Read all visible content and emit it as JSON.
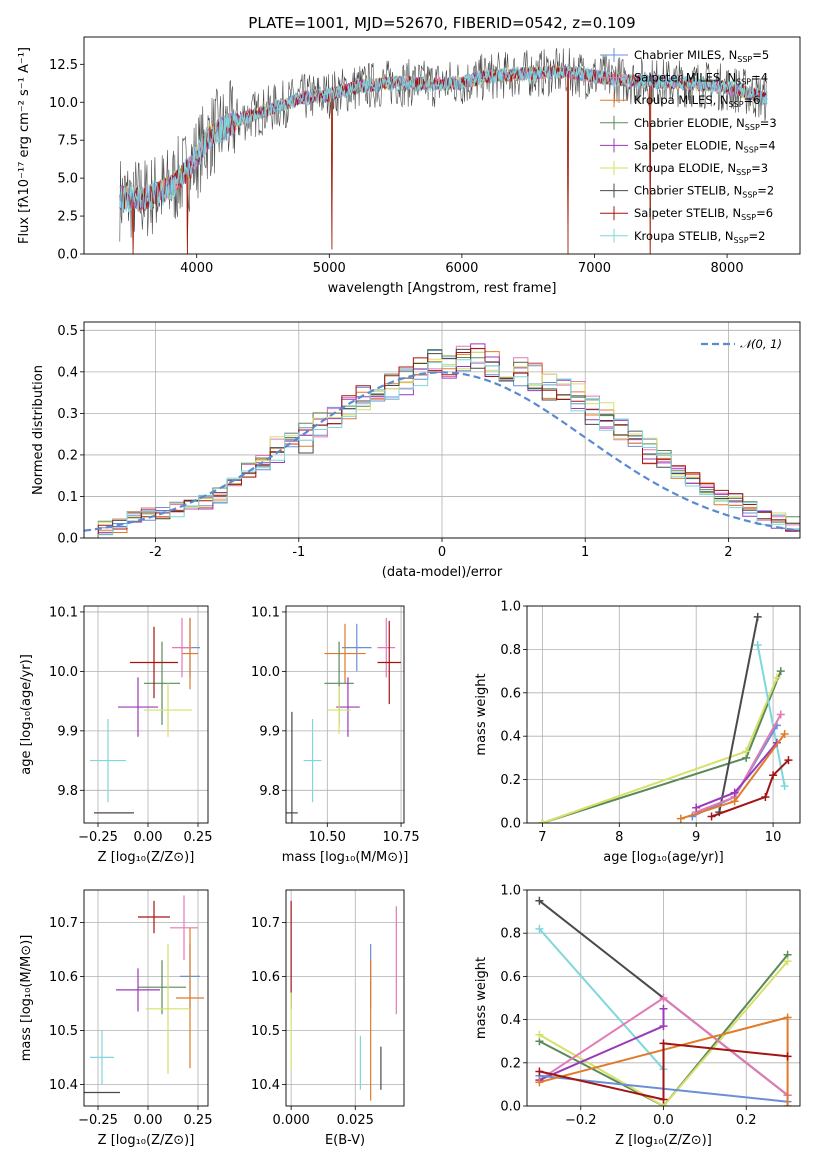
{
  "colors": [
    "#6b8fd6",
    "#e27ab8",
    "#e07b2a",
    "#5a8a5a",
    "#9a3ab8",
    "#d6e06a",
    "#4a4a4a",
    "#a31515",
    "#7fd6dc"
  ],
  "chart_data": [
    {
      "id": "spectrum",
      "type": "line",
      "title": "PLATE=1001, MJD=52670, FIBERID=0542, z=0.109",
      "xlabel": "wavelength [Angstrom, rest frame]",
      "ylabel": "Flux [fλ10⁻¹⁷ erg cm⁻² s⁻¹ A⁻¹]",
      "xlim": [
        3150,
        8550
      ],
      "ylim": [
        0,
        14.3
      ],
      "xticks": [
        4000,
        5000,
        6000,
        7000,
        8000
      ],
      "yticks": [
        0.0,
        2.5,
        5.0,
        7.5,
        10.0,
        12.5
      ],
      "continuum": [
        [
          3420,
          3.7
        ],
        [
          3600,
          3.6
        ],
        [
          3800,
          4.4
        ],
        [
          3950,
          5.7
        ],
        [
          4100,
          7.8
        ],
        [
          4300,
          8.8
        ],
        [
          4500,
          9.4
        ],
        [
          4800,
          10.3
        ],
        [
          5000,
          10.5
        ],
        [
          5200,
          11.0
        ],
        [
          5500,
          11.3
        ],
        [
          5800,
          11.2
        ],
        [
          6000,
          11.3
        ],
        [
          6200,
          11.7
        ],
        [
          6500,
          11.9
        ],
        [
          6800,
          12.0
        ],
        [
          7000,
          11.7
        ],
        [
          7300,
          11.4
        ],
        [
          7600,
          11.3
        ],
        [
          7900,
          11.1
        ],
        [
          8100,
          10.8
        ],
        [
          8300,
          10.2
        ]
      ],
      "drops": [
        [
          3520,
          0.0
        ],
        [
          3930,
          0.0
        ],
        [
          5020,
          0.3
        ],
        [
          6800,
          0.0
        ],
        [
          7420,
          0.0
        ]
      ],
      "legend": [
        {
          "label": "Chabrier MILES, N",
          "sub": "SSP",
          "suffix": "=5"
        },
        {
          "label": "Salpeter MILES, N",
          "sub": "SSP",
          "suffix": "=4"
        },
        {
          "label": "Kroupa MILES, N",
          "sub": "SSP",
          "suffix": "=6"
        },
        {
          "label": "Chabrier ELODIE, N",
          "sub": "SSP",
          "suffix": "=3"
        },
        {
          "label": "Salpeter ELODIE, N",
          "sub": "SSP",
          "suffix": "=4"
        },
        {
          "label": "Kroupa ELODIE, N",
          "sub": "SSP",
          "suffix": "=3"
        },
        {
          "label": "Chabrier STELIB, N",
          "sub": "SSP",
          "suffix": "=2"
        },
        {
          "label": "Salpeter STELIB, N",
          "sub": "SSP",
          "suffix": "=6"
        },
        {
          "label": "Kroupa STELIB, N",
          "sub": "SSP",
          "suffix": "=2"
        }
      ]
    },
    {
      "id": "histogram",
      "type": "histogram",
      "xlabel": "(data-model)/error",
      "ylabel": "Normed distribution",
      "xlim": [
        -2.5,
        2.5
      ],
      "ylim": [
        0,
        0.52
      ],
      "xticks": [
        -2,
        -1,
        0,
        1,
        2
      ],
      "yticks": [
        0.0,
        0.1,
        0.2,
        0.3,
        0.4,
        0.5
      ],
      "bin_width": 0.1,
      "legend": "𝒩(0, 1)",
      "edges_start": -2.5,
      "hist_values": [
        0.01,
        0.02,
        0.03,
        0.05,
        0.06,
        0.06,
        0.07,
        0.08,
        0.09,
        0.1,
        0.13,
        0.16,
        0.18,
        0.21,
        0.23,
        0.24,
        0.27,
        0.29,
        0.31,
        0.33,
        0.35,
        0.36,
        0.38,
        0.4,
        0.42,
        0.41,
        0.43,
        0.44,
        0.42,
        0.41,
        0.4,
        0.39,
        0.37,
        0.35,
        0.34,
        0.31,
        0.29,
        0.26,
        0.23,
        0.21,
        0.19,
        0.16,
        0.14,
        0.12,
        0.1,
        0.09,
        0.07,
        0.05,
        0.04,
        0.03
      ]
    },
    {
      "id": "age-vs-Z",
      "type": "errorbar",
      "xlabel": "Z [log₁₀(Z/Z⊙)]",
      "ylabel": "age  [log₁₀(age/yr)]",
      "xlim": [
        -0.32,
        0.3
      ],
      "ylim": [
        9.745,
        10.11
      ],
      "xticks": [
        -0.25,
        0.0,
        0.25
      ],
      "xticklabels": [
        "−0.25",
        "0.00",
        "0.25"
      ],
      "yticks": [
        9.8,
        9.9,
        10.0,
        10.1
      ],
      "points": [
        {
          "c": 0,
          "x": 0.21,
          "xe": 0.05,
          "y": 10.04,
          "ye": 0.05
        },
        {
          "c": 1,
          "x": 0.17,
          "xe": 0.05,
          "y": 10.04,
          "ye": 0.05
        },
        {
          "c": 2,
          "x": 0.21,
          "xe": 0.04,
          "y": 10.03,
          "ye": 0.06
        },
        {
          "c": 3,
          "x": 0.07,
          "xe": 0.09,
          "y": 9.98,
          "ye": 0.07
        },
        {
          "c": 4,
          "x": -0.05,
          "xe": 0.1,
          "y": 9.94,
          "ye": 0.05
        },
        {
          "c": 5,
          "x": 0.1,
          "xe": 0.12,
          "y": 9.935,
          "ye": 0.045
        },
        {
          "c": 6,
          "x": -0.17,
          "xe": 0.1,
          "y": 9.762,
          "ye": 0.0
        },
        {
          "c": 7,
          "x": 0.03,
          "xe": 0.12,
          "y": 10.015,
          "ye": 0.06
        },
        {
          "c": 8,
          "x": -0.2,
          "xe": 0.09,
          "y": 9.85,
          "ye": 0.07
        }
      ]
    },
    {
      "id": "age-vs-mass",
      "type": "errorbar",
      "xlabel": "mass [log₁₀(M/M⊙)]",
      "ylabel": "",
      "xlim": [
        10.36,
        10.76
      ],
      "ylim": [
        9.745,
        10.11
      ],
      "xticks": [
        10.5,
        10.75
      ],
      "xticklabels": [
        "10.50",
        "10.75"
      ],
      "yticks": [
        9.8,
        9.9,
        10.0,
        10.1
      ],
      "points": [
        {
          "c": 0,
          "x": 10.6,
          "xe": 0.05,
          "y": 10.04,
          "ye": 0.04
        },
        {
          "c": 1,
          "x": 10.7,
          "xe": 0.03,
          "y": 10.04,
          "ye": 0.05
        },
        {
          "c": 2,
          "x": 10.56,
          "xe": 0.07,
          "y": 10.03,
          "ye": 0.05
        },
        {
          "c": 3,
          "x": 10.54,
          "xe": 0.05,
          "y": 9.98,
          "ye": 0.07
        },
        {
          "c": 4,
          "x": 10.57,
          "xe": 0.04,
          "y": 9.94,
          "ye": 0.05
        },
        {
          "c": 5,
          "x": 10.54,
          "xe": 0.04,
          "y": 9.935,
          "ye": 0.04
        },
        {
          "c": 6,
          "x": 10.38,
          "xe": 0.02,
          "y": 9.762,
          "ye": 0.17
        },
        {
          "c": 7,
          "x": 10.71,
          "xe": 0.04,
          "y": 10.015,
          "ye": 0.07
        },
        {
          "c": 8,
          "x": 10.45,
          "xe": 0.03,
          "y": 9.85,
          "ye": 0.07
        }
      ]
    },
    {
      "id": "weight-vs-age",
      "type": "line",
      "xlabel": "age  [log₁₀(age/yr)]",
      "ylabel": "mass weight",
      "xlim": [
        6.8,
        10.35
      ],
      "ylim": [
        0,
        1.0
      ],
      "xticks": [
        7,
        8,
        9,
        10
      ],
      "yticks": [
        0.0,
        0.2,
        0.4,
        0.6,
        0.8,
        1.0
      ],
      "series": [
        {
          "c": 3,
          "x": [
            7.0,
            9.65,
            10.1
          ],
          "y": [
            0.0,
            0.3,
            0.7
          ]
        },
        {
          "c": 5,
          "x": [
            7.0,
            9.65,
            10.05
          ],
          "y": [
            0.0,
            0.33,
            0.67
          ]
        },
        {
          "c": 6,
          "x": [
            9.3,
            9.8
          ],
          "y": [
            0.05,
            0.95
          ]
        },
        {
          "c": 8,
          "x": [
            9.8,
            10.15
          ],
          "y": [
            0.82,
            0.17
          ]
        },
        {
          "c": 0,
          "x": [
            8.95,
            9.5,
            10.05
          ],
          "y": [
            0.03,
            0.12,
            0.45
          ]
        },
        {
          "c": 1,
          "x": [
            9.0,
            9.5,
            10.1
          ],
          "y": [
            0.05,
            0.12,
            0.5
          ]
        },
        {
          "c": 4,
          "x": [
            9.0,
            9.5,
            10.05
          ],
          "y": [
            0.07,
            0.14,
            0.37
          ]
        },
        {
          "c": 2,
          "x": [
            8.8,
            9.5,
            10.15
          ],
          "y": [
            0.02,
            0.1,
            0.41
          ]
        },
        {
          "c": 7,
          "x": [
            9.2,
            9.9,
            10.0,
            10.2
          ],
          "y": [
            0.03,
            0.12,
            0.22,
            0.29
          ]
        }
      ]
    },
    {
      "id": "mass-vs-Z",
      "type": "errorbar",
      "xlabel": "Z [log₁₀(Z/Z⊙)]",
      "ylabel": "mass [log₁₀(M/M⊙)]",
      "xlim": [
        -0.32,
        0.3
      ],
      "ylim": [
        10.36,
        10.76
      ],
      "xticks": [
        -0.25,
        0.0,
        0.25
      ],
      "xticklabels": [
        "−0.25",
        "0.00",
        "0.25"
      ],
      "yticks": [
        10.4,
        10.5,
        10.6,
        10.7
      ],
      "points": [
        {
          "c": 0,
          "x": 0.21,
          "xe": 0.05,
          "y": 10.6,
          "ye": 0.06
        },
        {
          "c": 1,
          "x": 0.18,
          "xe": 0.07,
          "y": 10.69,
          "ye": 0.06
        },
        {
          "c": 2,
          "x": 0.21,
          "xe": 0.07,
          "y": 10.56,
          "ye": 0.13
        },
        {
          "c": 3,
          "x": 0.07,
          "xe": 0.12,
          "y": 10.58,
          "ye": 0.05
        },
        {
          "c": 4,
          "x": -0.05,
          "xe": 0.11,
          "y": 10.575,
          "ye": 0.04
        },
        {
          "c": 5,
          "x": 0.1,
          "xe": 0.11,
          "y": 10.54,
          "ye": 0.12
        },
        {
          "c": 6,
          "x": -0.23,
          "xe": 0.09,
          "y": 10.385,
          "ye": 0.0
        },
        {
          "c": 7,
          "x": 0.03,
          "xe": 0.08,
          "y": 10.71,
          "ye": 0.03
        },
        {
          "c": 8,
          "x": -0.23,
          "xe": 0.06,
          "y": 10.45,
          "ye": 0.05
        }
      ]
    },
    {
      "id": "mass-vs-EBV",
      "type": "errorbar",
      "xlabel": "E(B-V)",
      "ylabel": "",
      "xlim": [
        -0.002,
        0.044
      ],
      "ylim": [
        10.36,
        10.76
      ],
      "xticks": [
        0.0,
        0.025
      ],
      "xticklabels": [
        "0.000",
        "0.025"
      ],
      "yticks": [
        10.4,
        10.5,
        10.6,
        10.7
      ],
      "points": [
        {
          "c": 7,
          "x": 0.0,
          "xe": 0,
          "y": 10.64,
          "ye": 0.1
        },
        {
          "c": 5,
          "x": 0.0,
          "xe": 0,
          "y": 10.5,
          "ye": 0.07
        },
        {
          "c": 0,
          "x": 0.031,
          "xe": 0,
          "y": 10.6,
          "ye": 0.06
        },
        {
          "c": 2,
          "x": 0.031,
          "xe": 0,
          "y": 10.5,
          "ye": 0.13
        },
        {
          "c": 8,
          "x": 0.027,
          "xe": 0,
          "y": 10.44,
          "ye": 0.05
        },
        {
          "c": 6,
          "x": 0.035,
          "xe": 0,
          "y": 10.43,
          "ye": 0.04
        },
        {
          "c": 1,
          "x": 0.041,
          "xe": 0,
          "y": 10.63,
          "ye": 0.1
        }
      ]
    },
    {
      "id": "weight-vs-Z",
      "type": "line",
      "xlabel": "Z [log₁₀(Z/Z⊙)]",
      "ylabel": "mass weight",
      "xlim": [
        -0.33,
        0.33
      ],
      "ylim": [
        0,
        1.0
      ],
      "xticks": [
        -0.2,
        0.0,
        0.2
      ],
      "xticklabels": [
        "−0.2",
        "0.0",
        "0.2"
      ],
      "yticks": [
        0.0,
        0.2,
        0.4,
        0.6,
        0.8,
        1.0
      ],
      "series": [
        {
          "c": 6,
          "x": [
            -0.3,
            0.3
          ],
          "y": [
            0.95,
            0.05
          ]
        },
        {
          "c": 8,
          "x": [
            -0.3,
            0.0
          ],
          "y": [
            0.82,
            0.17
          ]
        },
        {
          "c": 3,
          "x": [
            -0.3,
            0.0,
            0.3
          ],
          "y": [
            0.3,
            0.0,
            0.7
          ]
        },
        {
          "c": 5,
          "x": [
            -0.3,
            0.0,
            0.3
          ],
          "y": [
            0.33,
            0.0,
            0.67
          ]
        },
        {
          "c": 1,
          "x": [
            -0.3,
            0.0,
            0.3
          ],
          "y": [
            0.12,
            0.5,
            0.05
          ]
        },
        {
          "c": 4,
          "x": [
            -0.3,
            0.0,
            0.0
          ],
          "y": [
            0.12,
            0.37,
            0.45
          ]
        },
        {
          "c": 0,
          "x": [
            -0.3,
            0.3
          ],
          "y": [
            0.14,
            0.02
          ]
        },
        {
          "c": 2,
          "x": [
            -0.3,
            0.3,
            0.3
          ],
          "y": [
            0.11,
            0.41,
            0.0
          ]
        },
        {
          "c": 7,
          "x": [
            -0.3,
            0.0,
            0.0,
            0.3
          ],
          "y": [
            0.16,
            0.03,
            0.29,
            0.23
          ]
        }
      ]
    }
  ]
}
